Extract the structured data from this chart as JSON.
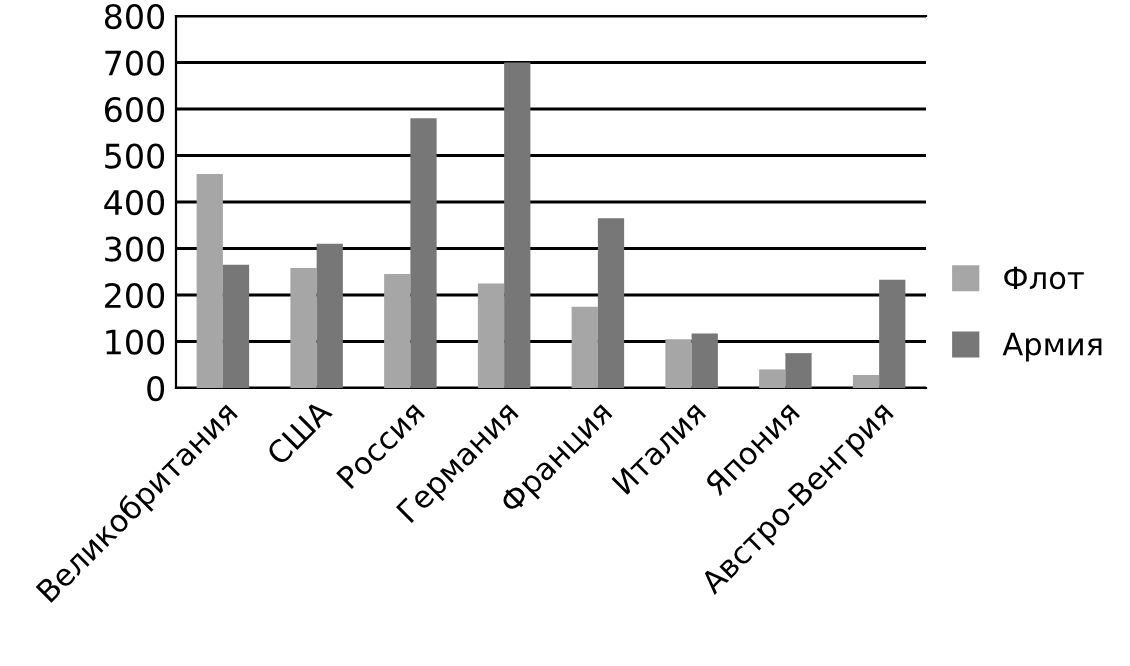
{
  "chart_data": {
    "type": "bar",
    "categories": [
      "Великобритания",
      "США",
      "Россия",
      "Германия",
      "Франция",
      "Италия",
      "Япония",
      "Австро-Венгрия"
    ],
    "series": [
      {
        "name": "Флот",
        "color": "#a6a6a6",
        "values": [
          460,
          258,
          245,
          225,
          175,
          105,
          40,
          28
        ]
      },
      {
        "name": "Армия",
        "color": "#777777",
        "values": [
          265,
          310,
          580,
          700,
          365,
          117,
          75,
          233
        ]
      }
    ],
    "ylim": [
      0,
      800
    ],
    "yticks": [
      0,
      100,
      200,
      300,
      400,
      500,
      600,
      700,
      800
    ],
    "grid": "y",
    "legend": "right"
  }
}
